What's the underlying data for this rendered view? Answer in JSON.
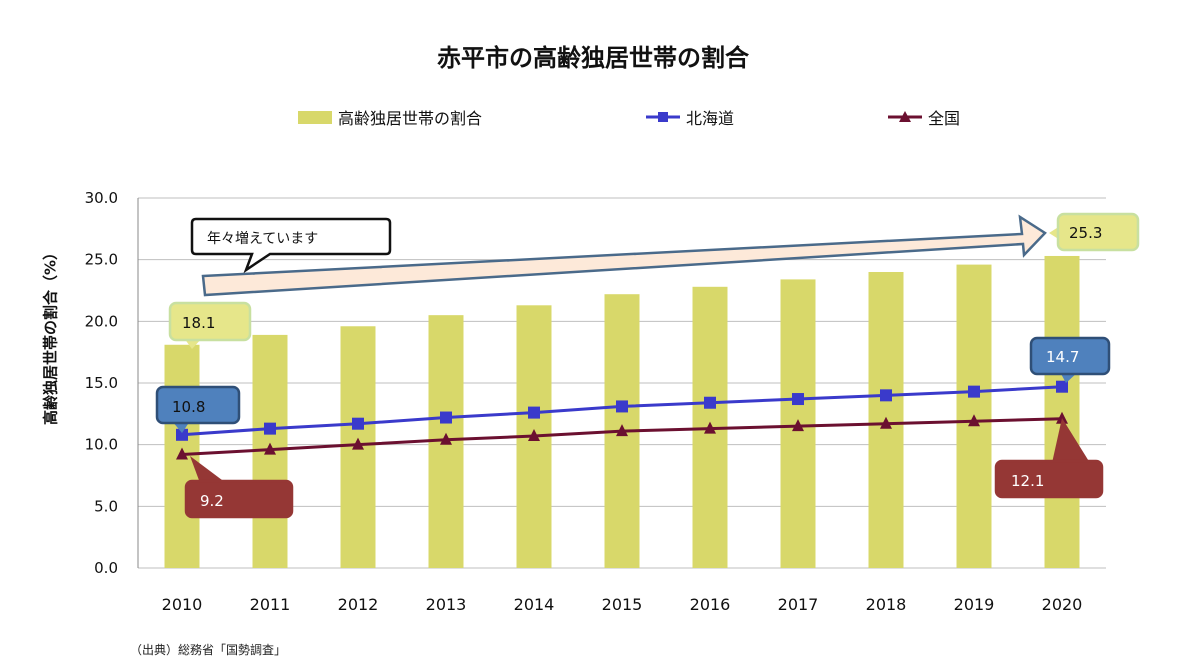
{
  "chart_data": {
    "type": "bar",
    "title": "赤平市の高齢独居世帯の割合",
    "ylabel": "高齢独居世帯の割合（%）",
    "xlabel": "",
    "categories": [
      "2010",
      "2011",
      "2012",
      "2013",
      "2014",
      "2015",
      "2016",
      "2017",
      "2018",
      "2019",
      "2020"
    ],
    "ylim": [
      0,
      30
    ],
    "yticks": [
      "0.0",
      "5.0",
      "10.0",
      "15.0",
      "20.0",
      "25.0",
      "30.0"
    ],
    "grid": true,
    "legend_position": "top",
    "series": [
      {
        "name": "高齢独居世帯の割合",
        "kind": "bar",
        "color": "#d8d86a",
        "values": [
          18.1,
          18.9,
          19.6,
          20.5,
          21.3,
          22.2,
          22.8,
          23.4,
          24.0,
          24.6,
          25.3
        ]
      },
      {
        "name": "北海道",
        "kind": "line",
        "marker": "square",
        "color": "#3a3acb",
        "values": [
          10.8,
          11.3,
          11.7,
          12.2,
          12.6,
          13.1,
          13.4,
          13.7,
          14.0,
          14.3,
          14.7
        ]
      },
      {
        "name": "全国",
        "kind": "line",
        "marker": "triangle",
        "color": "#6b1030",
        "values": [
          9.2,
          9.6,
          10.0,
          10.4,
          10.7,
          11.1,
          11.3,
          11.5,
          11.7,
          11.9,
          12.1
        ]
      }
    ],
    "annotations": {
      "trend_note": "年々増えています",
      "bar_first": "18.1",
      "bar_last": "25.3",
      "hokkaido_first": "10.8",
      "hokkaido_last": "14.7",
      "national_first": "9.2",
      "national_last": "12.1"
    },
    "source": "（出典）総務省「国勢調査」"
  },
  "colors": {
    "bar": "#d8d86a",
    "hokkaido": "#3a3acb",
    "national": "#6b1030",
    "callout_bar": "#e6e68a",
    "callout_hokkaido": "#4f81bd",
    "callout_national": "#953735",
    "gridline": "#bfbfbf"
  }
}
